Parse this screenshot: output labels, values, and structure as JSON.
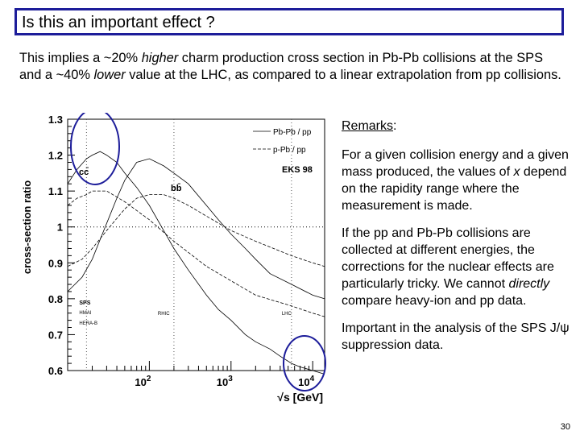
{
  "slide": {
    "title": "Is this an important effect ?",
    "intro": {
      "part1": "This implies a ~20% ",
      "higher": "higher",
      "part2": " charm production cross section in Pb-Pb collisions at the SPS and a ~40% ",
      "lower": "lower",
      "part3": " value at the LHC, as compared to a linear extrapolation from pp collisions."
    },
    "remarks": {
      "heading": "Remarks",
      "heading_colon": ":",
      "para1": "For a given collision energy and a given mass produced, the values of ",
      "para1_var": "x",
      "para1_end": " depend on the rapidity range where the measurement is made.",
      "para2_a": "If the pp and Pb-Pb collisions are collected at different energies, the corrections for the nuclear effects are particularly tricky. We cannot ",
      "para2_em": "directly",
      "para2_b": " compare heavy-ion and pp data.",
      "para3": "Important in the analysis of the SPS J/ψ suppression data."
    },
    "page_number": "30"
  },
  "chart_data": {
    "type": "line",
    "title": "",
    "xlabel": "√s [GeV]",
    "ylabel": "cross-section ratio",
    "xscale": "log",
    "xlim": [
      10,
      14000
    ],
    "ylim": [
      0.6,
      1.3
    ],
    "x_tick_labels": [
      "10",
      "10",
      "10"
    ],
    "x_tick_exponents": [
      "2",
      "3",
      "4"
    ],
    "y_tick_labels": [
      "0.6",
      "0.7",
      "0.8",
      "0.9",
      "1",
      "1.1",
      "1.2",
      "1.3"
    ],
    "legend": [
      "Pb-Pb / pp",
      "p-Pb / pp"
    ],
    "legend_placement": "top-right",
    "annotation_eks": "EKS 98",
    "annotation_cc": "cc̄",
    "annotation_bb": "bb̄",
    "vlines": [
      {
        "x": 17,
        "label": "SPS"
      },
      {
        "x": 200,
        "label": "RHIC"
      },
      {
        "x": 5500,
        "label": "LHC"
      }
    ],
    "sps_sublabels": [
      "HMAI",
      "HERA-B"
    ],
    "series": [
      {
        "name": "Pb-Pb / pp",
        "particle": "cc̄",
        "style": "solid",
        "x": [
          10,
          13,
          17,
          20,
          25,
          30,
          40,
          50,
          70,
          100,
          150,
          200,
          300,
          500,
          700,
          1000,
          1500,
          2000,
          3000,
          4000,
          5500,
          7000,
          10000,
          14000
        ],
        "y": [
          1.12,
          1.16,
          1.19,
          1.2,
          1.21,
          1.2,
          1.18,
          1.15,
          1.11,
          1.06,
          0.99,
          0.94,
          0.88,
          0.81,
          0.77,
          0.74,
          0.7,
          0.68,
          0.66,
          0.64,
          0.62,
          0.61,
          0.6,
          0.59
        ]
      },
      {
        "name": "p-Pb / pp",
        "particle": "cc̄",
        "style": "dashed",
        "x": [
          10,
          13,
          17,
          20,
          30,
          50,
          100,
          200,
          500,
          1000,
          2000,
          5500,
          10000,
          14000
        ],
        "y": [
          1.06,
          1.08,
          1.09,
          1.1,
          1.1,
          1.07,
          1.02,
          0.96,
          0.89,
          0.85,
          0.81,
          0.78,
          0.76,
          0.75
        ]
      },
      {
        "name": "Pb-Pb / pp",
        "particle": "bb̄",
        "style": "solid",
        "x": [
          10,
          15,
          20,
          30,
          40,
          50,
          70,
          100,
          150,
          200,
          300,
          500,
          700,
          1000,
          1500,
          2000,
          3000,
          5500,
          10000,
          14000
        ],
        "y": [
          0.82,
          0.86,
          0.91,
          1.01,
          1.08,
          1.13,
          1.18,
          1.19,
          1.17,
          1.15,
          1.12,
          1.06,
          1.02,
          0.98,
          0.94,
          0.91,
          0.87,
          0.84,
          0.81,
          0.8
        ]
      },
      {
        "name": "p-Pb / pp",
        "particle": "bb̄",
        "style": "dashed",
        "x": [
          10,
          15,
          20,
          30,
          50,
          70,
          100,
          150,
          200,
          300,
          500,
          1000,
          2000,
          5500,
          10000,
          14000
        ],
        "y": [
          0.89,
          0.91,
          0.94,
          0.99,
          1.05,
          1.08,
          1.09,
          1.09,
          1.08,
          1.06,
          1.03,
          0.99,
          0.96,
          0.92,
          0.9,
          0.89
        ]
      }
    ],
    "highlights": [
      {
        "x": 18,
        "y": 1.19,
        "color": "#1d1d9a"
      },
      {
        "x": 9000,
        "y": 0.6,
        "color": "#1d1d9a"
      }
    ]
  }
}
